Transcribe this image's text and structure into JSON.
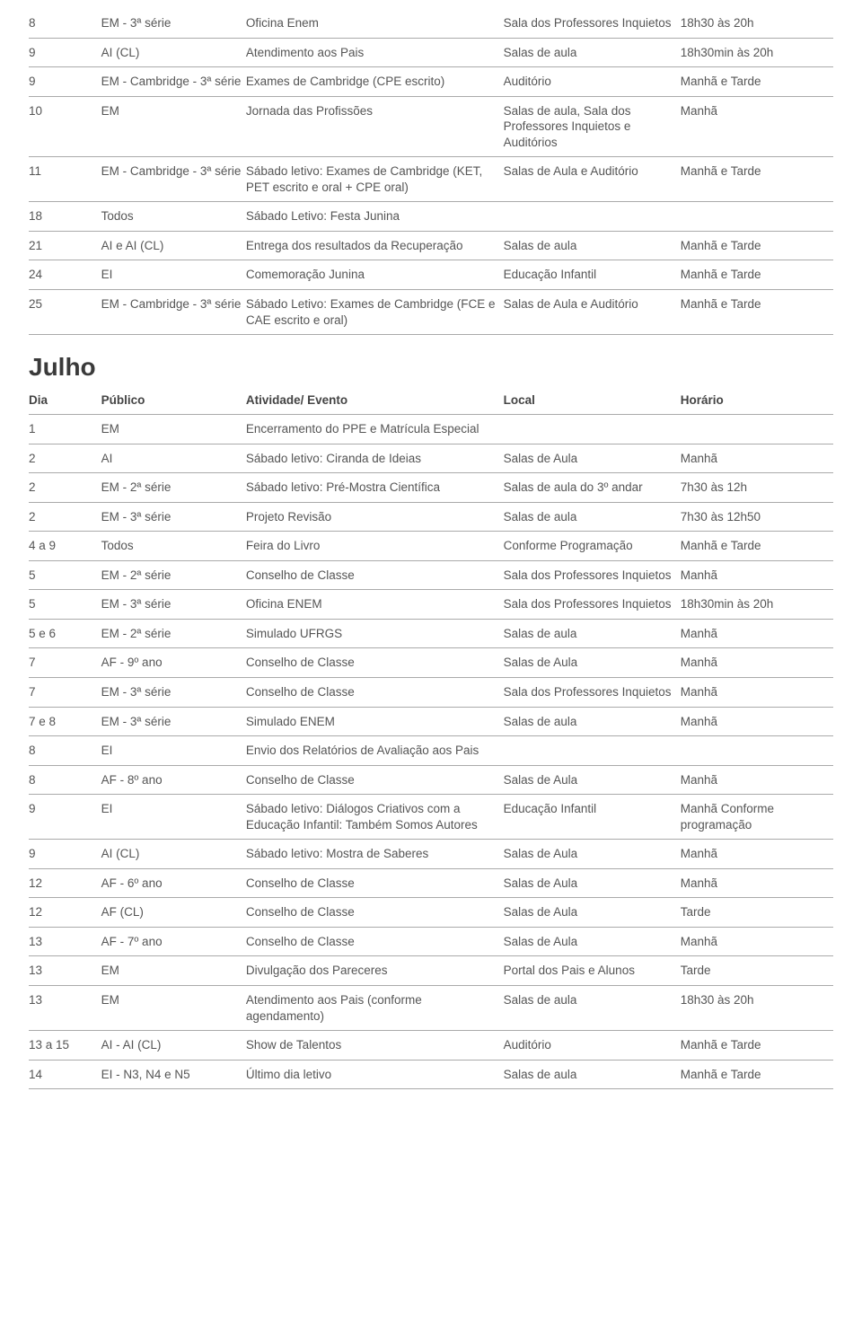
{
  "colgroups": [
    "col-dia",
    "col-pub",
    "col-ativ",
    "col-local",
    "col-hor"
  ],
  "month1_rows": [
    {
      "dia": "8",
      "pub": "EM - 3ª série",
      "ativ": "Oficina Enem",
      "local": "Sala dos Professores Inquietos",
      "hor": "18h30 às 20h"
    },
    {
      "dia": "9",
      "pub": "AI (CL)",
      "ativ": "Atendimento aos Pais",
      "local": "Salas de aula",
      "hor": "18h30min às 20h"
    },
    {
      "dia": "9",
      "pub": "EM - Cambridge - 3ª série",
      "ativ": "Exames de Cambridge (CPE escrito)",
      "local": "Auditório",
      "hor": "Manhã e Tarde"
    },
    {
      "dia": "10",
      "pub": "EM",
      "ativ": "Jornada das Profissões",
      "local": "Salas de aula, Sala dos Professores Inquietos e Auditórios",
      "hor": "Manhã"
    },
    {
      "dia": "11",
      "pub": "EM - Cambridge - 3ª série",
      "ativ": "Sábado letivo: Exames de Cambridge (KET, PET escrito e oral + CPE oral)",
      "local": "Salas de Aula e Auditório",
      "hor": "Manhã e Tarde"
    },
    {
      "dia": "18",
      "pub": "Todos",
      "ativ": "Sábado Letivo: Festa Junina",
      "local": "",
      "hor": ""
    },
    {
      "dia": "21",
      "pub": "AI e AI (CL)",
      "ativ": "Entrega dos resultados da Recuperação",
      "local": "Salas de aula",
      "hor": "Manhã e Tarde"
    },
    {
      "dia": "24",
      "pub": "EI",
      "ativ": "Comemoração Junina",
      "local": "Educação Infantil",
      "hor": "Manhã e Tarde"
    },
    {
      "dia": "25",
      "pub": "EM - Cambridge - 3ª série",
      "ativ": "Sábado Letivo: Exames de Cambridge (FCE e CAE escrito e oral)",
      "local": "Salas de Aula e Auditório",
      "hor": "Manhã e Tarde"
    }
  ],
  "month2_title": "Julho",
  "headers": {
    "dia": "Dia",
    "pub": "Público",
    "ativ": "Atividade/ Evento",
    "local": "Local",
    "hor": "Horário"
  },
  "month2_rows": [
    {
      "dia": "1",
      "pub": "EM",
      "ativ": "Encerramento do PPE e Matrícula Especial",
      "local": "",
      "hor": ""
    },
    {
      "dia": "2",
      "pub": "AI",
      "ativ": "Sábado letivo: Ciranda de Ideias",
      "local": "Salas de Aula",
      "hor": "Manhã"
    },
    {
      "dia": "2",
      "pub": "EM - 2ª série",
      "ativ": "Sábado letivo: Pré-Mostra Científica",
      "local": "Salas de aula do 3º andar",
      "hor": "7h30 às 12h"
    },
    {
      "dia": "2",
      "pub": "EM - 3ª série",
      "ativ": "Projeto Revisão",
      "local": "Salas de aula",
      "hor": "7h30 às 12h50"
    },
    {
      "dia": "4 a 9",
      "pub": "Todos",
      "ativ": "Feira do Livro",
      "local": "Conforme Programação",
      "hor": "Manhã e Tarde"
    },
    {
      "dia": "5",
      "pub": "EM - 2ª série",
      "ativ": "Conselho de Classe",
      "local": "Sala dos Professores Inquietos",
      "hor": "Manhã"
    },
    {
      "dia": "5",
      "pub": "EM - 3ª  série",
      "ativ": "Oficina ENEM",
      "local": "Sala dos Professores Inquietos",
      "hor": "18h30min às 20h"
    },
    {
      "dia": "5 e 6",
      "pub": "EM - 2ª série",
      "ativ": "Simulado UFRGS",
      "local": "Salas de aula",
      "hor": "Manhã"
    },
    {
      "dia": "7",
      "pub": "AF - 9º ano",
      "ativ": "Conselho de Classe",
      "local": "Salas de Aula",
      "hor": "Manhã"
    },
    {
      "dia": "7",
      "pub": "EM - 3ª série",
      "ativ": "Conselho de Classe",
      "local": "Sala dos Professores Inquietos",
      "hor": "Manhã"
    },
    {
      "dia": "7 e 8",
      "pub": "EM - 3ª série",
      "ativ": "Simulado ENEM",
      "local": "Salas de aula",
      "hor": "Manhã"
    },
    {
      "dia": "8",
      "pub": "EI",
      "ativ": "Envio dos Relatórios de Avaliação aos Pais",
      "local": "",
      "hor": ""
    },
    {
      "dia": "8",
      "pub": "AF - 8º ano",
      "ativ": "Conselho de Classe",
      "local": "Salas de Aula",
      "hor": "Manhã"
    },
    {
      "dia": "9",
      "pub": "EI",
      "ativ": "Sábado letivo: Diálogos Criativos com a Educação Infantil: Também Somos Autores",
      "local": "Educação Infantil",
      "hor": "Manhã Conforme programação"
    },
    {
      "dia": "9",
      "pub": "AI (CL)",
      "ativ": "Sábado letivo: Mostra de Saberes",
      "local": "Salas de Aula",
      "hor": "Manhã"
    },
    {
      "dia": "12",
      "pub": "AF - 6º ano",
      "ativ": "Conselho de Classe",
      "local": "Salas de Aula",
      "hor": "Manhã"
    },
    {
      "dia": "12",
      "pub": "AF (CL)",
      "ativ": "Conselho de Classe",
      "local": "Salas de Aula",
      "hor": "Tarde"
    },
    {
      "dia": "13",
      "pub": "AF - 7º ano",
      "ativ": "Conselho de Classe",
      "local": "Salas de Aula",
      "hor": "Manhã"
    },
    {
      "dia": "13",
      "pub": "EM",
      "ativ": "Divulgação dos Pareceres",
      "local": "Portal dos Pais e Alunos",
      "hor": "Tarde"
    },
    {
      "dia": "13",
      "pub": "EM",
      "ativ": "Atendimento aos Pais (conforme agendamento)",
      "local": "Salas de aula",
      "hor": "18h30 às 20h"
    },
    {
      "dia": "13 a 15",
      "pub": "AI - AI (CL)",
      "ativ": "Show de Talentos",
      "local": "Auditório",
      "hor": "Manhã e Tarde"
    },
    {
      "dia": "14",
      "pub": "EI - N3, N4 e N5",
      "ativ": "Último dia letivo",
      "local": "Salas de aula",
      "hor": "Manhã e Tarde"
    }
  ]
}
